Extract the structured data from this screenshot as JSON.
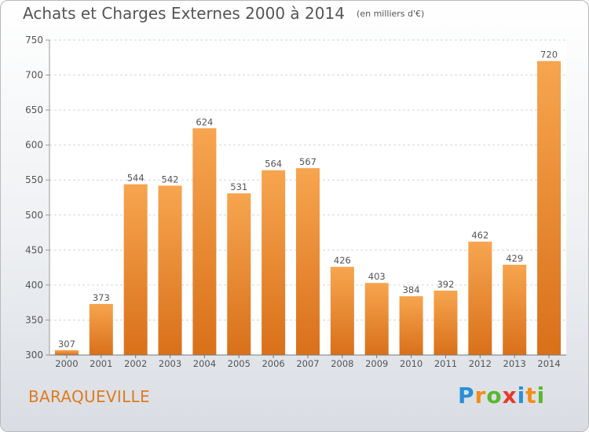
{
  "title": "Achats et Charges Externes 2000 à 2014",
  "unit": "(en milliers d'€)",
  "location": "BARAQUEVILLE",
  "brand": {
    "letters": [
      "P",
      "r",
      "o",
      "x",
      "i",
      "t",
      "i"
    ],
    "colors": [
      "#2a8fd6",
      "#f28c1c",
      "#5bb630",
      "#e53a2c",
      "#2a8fd6",
      "#f28c1c",
      "#5bb630"
    ]
  },
  "colors": {
    "bar": "#f0922f",
    "text": "#555555",
    "location": "#e07a1f"
  },
  "chart_data": {
    "type": "bar",
    "categories": [
      "2000",
      "2001",
      "2002",
      "2003",
      "2004",
      "2005",
      "2006",
      "2007",
      "2008",
      "2009",
      "2010",
      "2011",
      "2012",
      "2013",
      "2014"
    ],
    "values": [
      307,
      373,
      544,
      542,
      624,
      531,
      564,
      567,
      426,
      403,
      384,
      392,
      462,
      429,
      720
    ],
    "value_labels": [
      "307",
      "373",
      "544",
      "542",
      "624",
      "531",
      "564",
      "567",
      "426",
      "403",
      "384",
      "392",
      "462",
      "429",
      "720"
    ],
    "yticks": [
      "300",
      "350",
      "400",
      "450",
      "500",
      "550",
      "600",
      "650",
      "700",
      "750"
    ],
    "ylim": [
      300,
      750
    ],
    "grid": true
  }
}
